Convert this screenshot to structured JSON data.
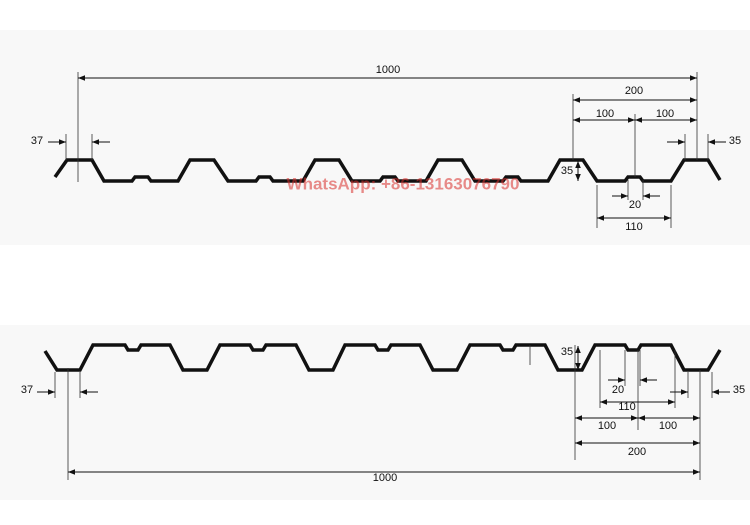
{
  "watermark": "WhatsApp: +86-13163076790",
  "top_profile": {
    "overall_width": 1000,
    "pitch": 200,
    "half_pitch_left": 100,
    "half_pitch_right": 100,
    "edge_left": 37,
    "edge_right": 35,
    "rib_height": 35,
    "stiffener": 20,
    "valley": 110
  },
  "bottom_profile": {
    "overall_width": 1000,
    "pitch": 200,
    "half_pitch_left": 100,
    "half_pitch_right": 100,
    "edge_left": 37,
    "edge_right": 35,
    "rib_height": 35,
    "stiffener": 20,
    "valley": 110
  }
}
